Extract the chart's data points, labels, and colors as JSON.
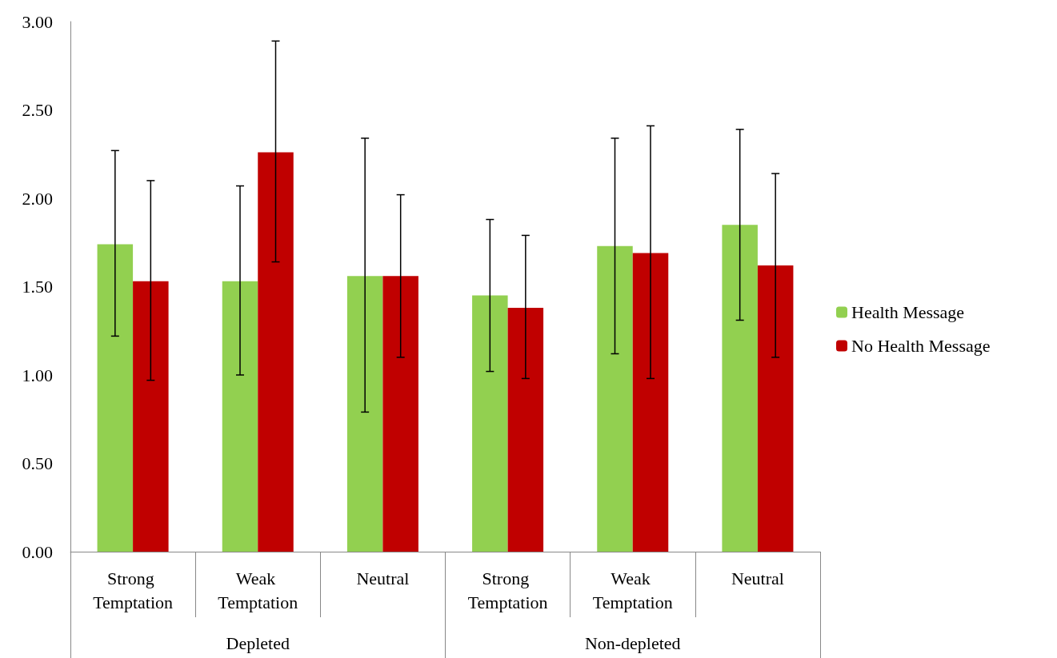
{
  "chart_data": {
    "type": "bar",
    "categories": [
      "Strong Temptation",
      "Weak Temptation",
      "Neutral",
      "Strong Temptation",
      "Weak Temptation",
      "Neutral"
    ],
    "series": [
      {
        "name": "Health Message",
        "color": "#92d050",
        "values": [
          1.74,
          1.53,
          1.56,
          1.45,
          1.73,
          1.85
        ],
        "errors": [
          [
            1.22,
            2.27
          ],
          [
            1.0,
            2.07
          ],
          [
            0.79,
            2.34
          ],
          [
            1.02,
            1.88
          ],
          [
            1.12,
            2.34
          ],
          [
            1.31,
            2.39
          ]
        ]
      },
      {
        "name": "No Health Message",
        "color": "#c00000",
        "values": [
          1.53,
          2.26,
          1.56,
          1.38,
          1.69,
          1.62
        ],
        "errors": [
          [
            0.97,
            2.1
          ],
          [
            1.64,
            2.89
          ],
          [
            1.1,
            2.02
          ],
          [
            0.98,
            1.79
          ],
          [
            0.98,
            2.41
          ],
          [
            1.1,
            2.14
          ]
        ]
      }
    ],
    "annotations": [
      "Depleted",
      "Non-depleted"
    ],
    "ylim": [
      0,
      3
    ],
    "yticks": [
      {
        "value": 0,
        "label": "0.00"
      },
      {
        "value": 0.5,
        "label": "0.50"
      },
      {
        "value": 1,
        "label": "1.00"
      },
      {
        "value": 1.5,
        "label": "1.50"
      },
      {
        "value": 2,
        "label": "2.00"
      },
      {
        "value": 2.5,
        "label": "2.50"
      },
      {
        "value": 3,
        "label": "3.00"
      }
    ],
    "grid": false,
    "legend": "right"
  }
}
